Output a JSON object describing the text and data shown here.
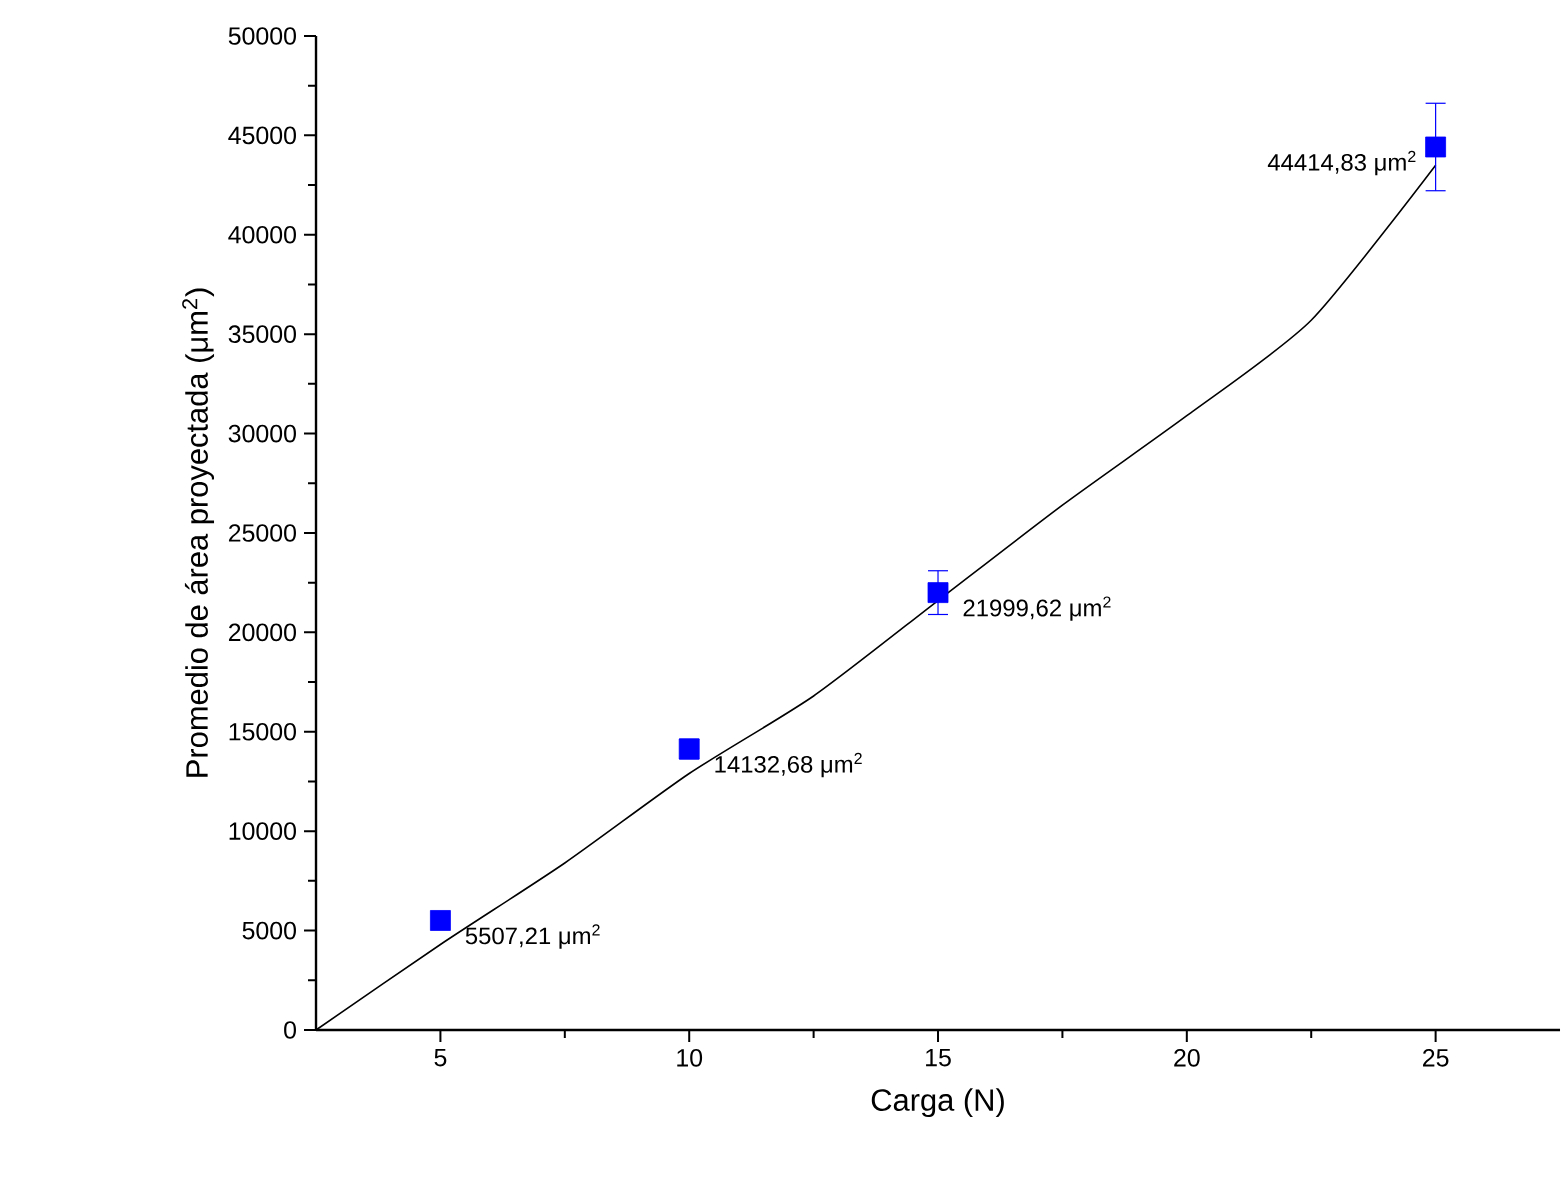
{
  "chart_data": {
    "type": "scatter",
    "xlabel": "Carga (N)",
    "ylabel": "Promedio de área proyectada (μm$^{2}$)",
    "xlim": [
      2.5,
      27.5
    ],
    "ylim": [
      0,
      50000
    ],
    "xticks": [
      5,
      10,
      15,
      20,
      25
    ],
    "yticks": [
      0,
      5000,
      10000,
      15000,
      20000,
      25000,
      30000,
      35000,
      40000,
      45000,
      50000
    ],
    "grid": false,
    "series": [
      {
        "color": "#0000ff",
        "marker": "square",
        "x": [
          5,
          10,
          15,
          25
        ],
        "values": [
          5507.21,
          14132.68,
          21999.62,
          44414.83
        ],
        "errors": [
          null,
          500,
          1100,
          2200
        ],
        "value_labels": [
          "5507,21 μm$^{2}$",
          "14132,68 μm$^{2}$",
          "21999,62 μm$^{2}$",
          "44414,83 μm$^{2}$"
        ]
      },
      {
        "type": "line",
        "color": "#000000",
        "marker": "none",
        "line_style": "solid",
        "x": [
          2.5,
          5,
          7.5,
          10,
          12.5,
          15,
          17.5,
          20,
          22.5,
          25
        ],
        "values": [
          0,
          4300,
          8400,
          12900,
          16800,
          21600,
          26400,
          30900,
          35700,
          43500
        ]
      }
    ]
  }
}
